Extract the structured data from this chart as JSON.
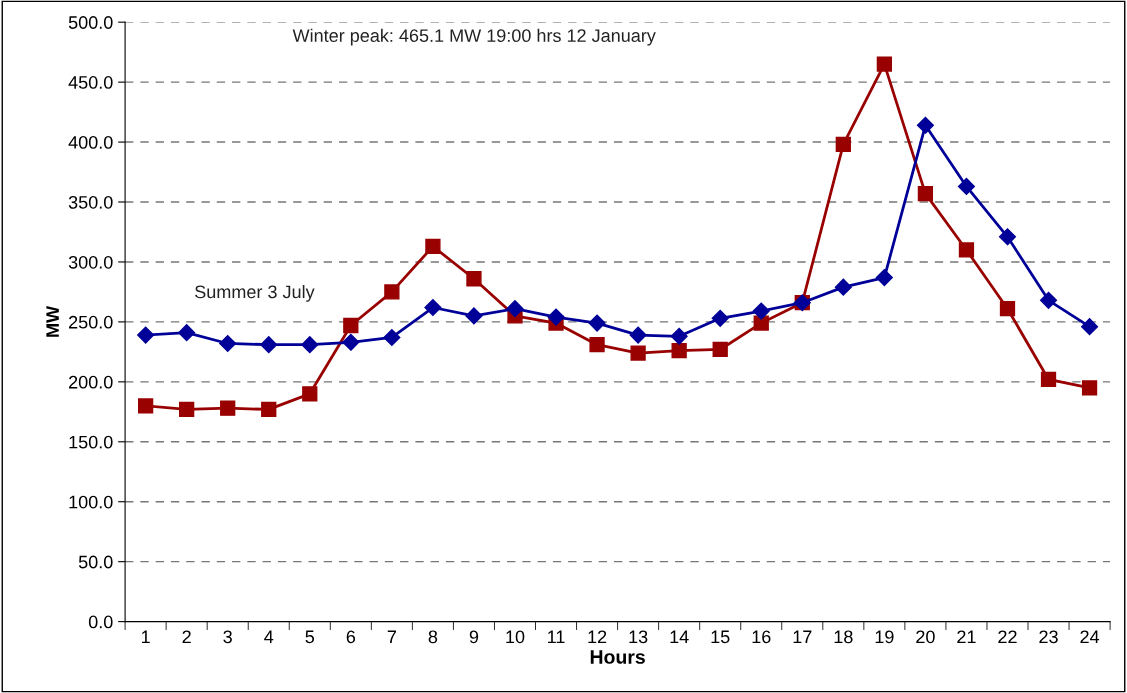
{
  "chart_data": {
    "type": "line",
    "xlabel": "Hours",
    "ylabel": "MW",
    "categories": [
      "1",
      "2",
      "3",
      "4",
      "5",
      "6",
      "7",
      "8",
      "9",
      "10",
      "11",
      "12",
      "13",
      "14",
      "15",
      "16",
      "17",
      "18",
      "19",
      "20",
      "21",
      "22",
      "23",
      "24"
    ],
    "series": [
      {
        "name": "Summer 3 July",
        "color": "#000099",
        "marker": "diamond",
        "values": [
          239,
          241,
          232,
          231,
          231,
          233,
          237,
          262,
          255,
          261,
          254,
          249,
          239,
          238,
          253,
          259,
          266,
          279,
          287,
          414,
          363,
          321,
          268,
          246
        ]
      },
      {
        "color": "#990000",
        "marker": "square",
        "values": [
          180,
          177,
          178,
          177,
          190,
          247,
          275,
          313,
          286,
          255,
          249,
          231,
          224,
          226,
          227,
          249,
          266,
          398,
          465,
          357,
          310,
          261,
          202,
          195
        ]
      }
    ],
    "ylim": [
      0,
      500
    ],
    "yticks": [
      {
        "value": 0,
        "label": "0.0"
      },
      {
        "value": 50,
        "label": "50.0"
      },
      {
        "value": 100,
        "label": "100.0"
      },
      {
        "value": 150,
        "label": "150.0"
      },
      {
        "value": 200,
        "label": "200.0"
      },
      {
        "value": 250,
        "label": "250.0"
      },
      {
        "value": 300,
        "label": "300.0"
      },
      {
        "value": 350,
        "label": "350.0"
      },
      {
        "value": 400,
        "label": "400.0"
      },
      {
        "value": 450,
        "label": "450.0"
      },
      {
        "value": 500,
        "label": "500.0"
      }
    ],
    "grid": "y",
    "line_style": "solid",
    "annotations": [
      "Winter peak: 465.1 MW 19:00 hrs 12 January"
    ]
  }
}
